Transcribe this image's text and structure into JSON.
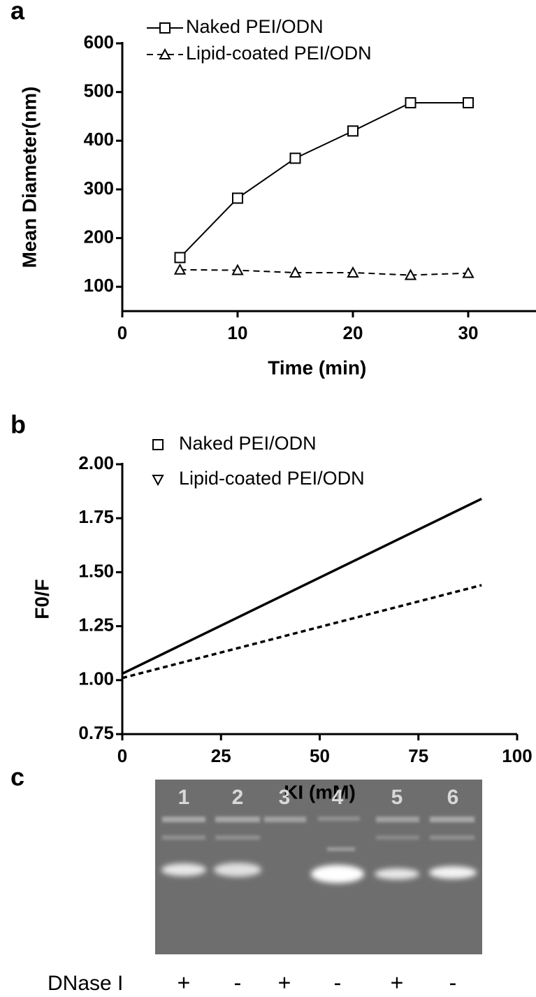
{
  "chart_data": [
    {
      "type": "line",
      "panel_label": "a",
      "x_label": "Time (min)",
      "y_label": "Mean Diameter(nm)",
      "x": [
        5,
        10,
        15,
        20,
        25,
        30
      ],
      "series": [
        {
          "name": "Naked PEI/ODN",
          "color": "#000000",
          "line_style": "solid",
          "marker": "square",
          "values": [
            160,
            282,
            364,
            420,
            478,
            478
          ]
        },
        {
          "name": "Lipid-coated PEI/ODN",
          "color": "#000000",
          "line_style": "dashed",
          "marker": "triangle",
          "values": [
            135,
            134,
            129,
            129,
            124,
            128
          ]
        }
      ],
      "xlim": [
        0,
        35
      ],
      "xticks": [
        0,
        10,
        20,
        30
      ],
      "ylim": [
        50,
        600
      ],
      "yticks": [
        100,
        200,
        300,
        400,
        500,
        600
      ],
      "markers_on_line": true,
      "legend": "top-left"
    },
    {
      "type": "line",
      "panel_label": "b",
      "x_label": "KI (mM)",
      "y_label": "F0/F",
      "x": [
        0,
        91
      ],
      "series": [
        {
          "name": "Naked PEI/ODN",
          "color": "#000000",
          "line_style": "solid",
          "marker": "square",
          "values": [
            1.03,
            1.84
          ]
        },
        {
          "name": "Lipid-coated PEI/ODN",
          "color": "#000000",
          "line_style": "dashed",
          "marker": "down-triangle",
          "values": [
            1.01,
            1.44
          ]
        }
      ],
      "xlim": [
        0,
        100
      ],
      "xticks": [
        0,
        25,
        50,
        75,
        100
      ],
      "ylim": [
        0.75,
        2.0
      ],
      "yticks": [
        {
          "value": 0.75,
          "label": "0.75"
        },
        {
          "value": 1.0,
          "label": "1.00"
        },
        {
          "value": 1.25,
          "label": "1.25"
        },
        {
          "value": 1.5,
          "label": "1.50"
        },
        {
          "value": 1.75,
          "label": "1.75"
        },
        {
          "value": 2.0,
          "label": "2.00"
        }
      ],
      "markers_on_line": false,
      "legend": "top-left"
    }
  ],
  "gel": {
    "panel_label": "c",
    "lanes": [
      "1",
      "2",
      "3",
      "4",
      "5",
      "6"
    ],
    "row_label": "DNase I",
    "treatment": [
      "+",
      "-",
      "+",
      "-",
      "+",
      "-"
    ]
  }
}
